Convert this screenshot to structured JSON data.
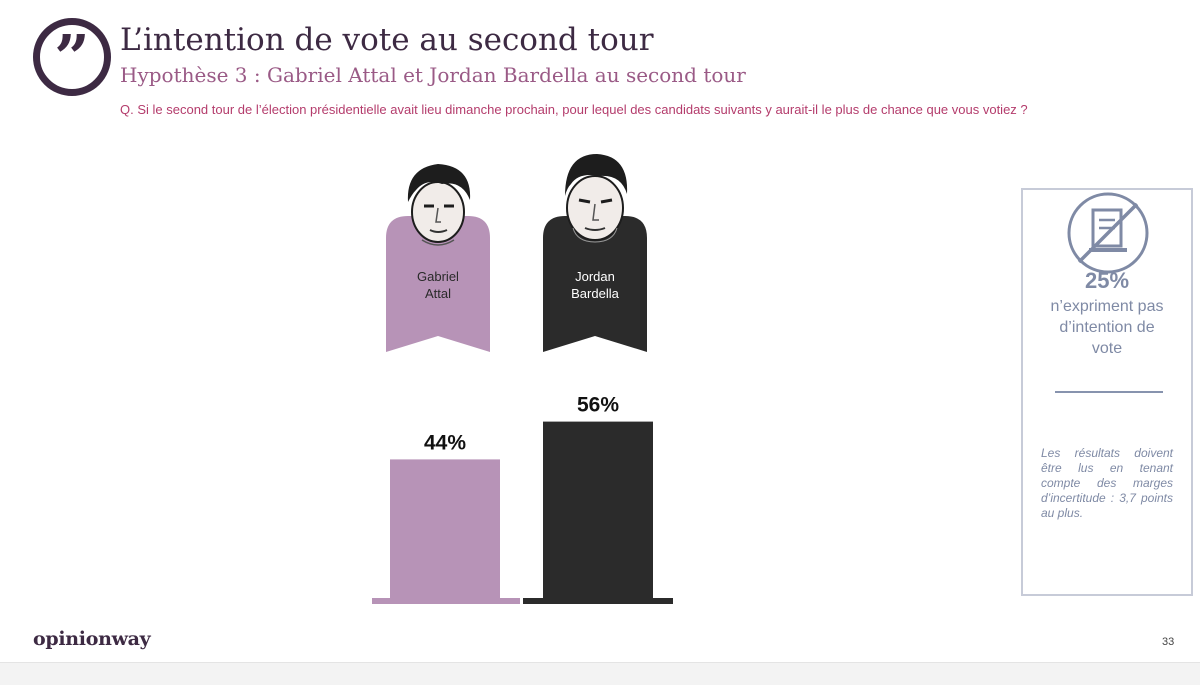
{
  "header": {
    "title": "L’intention de vote au second tour",
    "subtitle": "Hypothèse 3 : Gabriel Attal et Jordan Bardella au second tour",
    "question": "Q. Si le second tour de l’élection présidentielle avait lieu dimanche prochain, pour lequel des candidats suivants y aurait-il le plus de chance que vous votiez ?"
  },
  "candidates": [
    {
      "line1": "Gabriel",
      "line2": "Attal"
    },
    {
      "line1": "Jordan",
      "line2": "Bardella"
    }
  ],
  "chart_data": {
    "type": "bar",
    "categories": [
      "Gabriel Attal",
      "Jordan Bardella"
    ],
    "values": [
      44,
      56
    ],
    "value_labels": [
      "44%",
      "56%"
    ],
    "unit": "%",
    "ylim": [
      0,
      100
    ],
    "colors": [
      "#b793b7",
      "#2b2b2b"
    ],
    "title": "",
    "xlabel": "",
    "ylabel": "",
    "grid": false,
    "legend": "none"
  },
  "side_panel": {
    "icon": "crossed-ballot-icon",
    "percent": "25%",
    "text_lines": [
      "n’expriment pas",
      "d’intention de",
      "vote"
    ],
    "note": "Les résultats doivent être lus en tenant compte des marges d’incertitude : 3,7 points au plus."
  },
  "footer": {
    "brand": "opinionway",
    "page_number": "33"
  },
  "colors": {
    "title": "#3d2a43",
    "subtitle": "#9a5a86",
    "question": "#b43c6c",
    "attal": "#b793b7",
    "bardella": "#2b2b2b",
    "panel_text": "#7f8aa5"
  }
}
